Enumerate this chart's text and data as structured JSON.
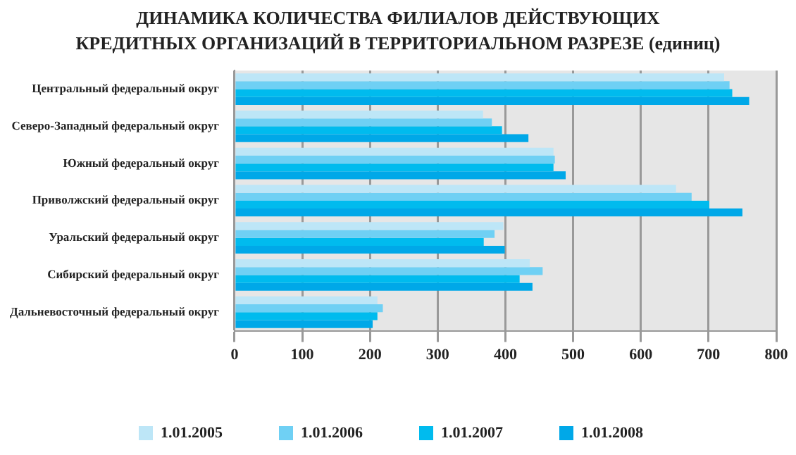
{
  "chart_data": {
    "type": "bar",
    "orientation": "horizontal",
    "title": "ДИНАМИКА КОЛИЧЕСТВА ФИЛИАЛОВ ДЕЙСТВУЮЩИХ КРЕДИТНЫХ ОРГАНИЗАЦИЙ В ТЕРРИТОРИАЛЬНОМ РАЗРЕЗЕ (единиц)",
    "categories": [
      "Центральный федеральный округ",
      "Северо-Западный федеральный округ",
      "Южный федеральный округ",
      "Приволжский федеральный округ",
      "Уральский федеральный округ",
      "Сибирский федеральный округ",
      "Дальневосточный федеральный округ"
    ],
    "series": [
      {
        "name": "1.01.2005",
        "color": "#bde6f7",
        "values": [
          723,
          367,
          471,
          652,
          397,
          436,
          211
        ]
      },
      {
        "name": "1.01.2006",
        "color": "#6fd0f4",
        "values": [
          731,
          380,
          473,
          675,
          384,
          455,
          219
        ]
      },
      {
        "name": "1.01.2007",
        "color": "#00bbee",
        "values": [
          735,
          395,
          471,
          701,
          368,
          421,
          211
        ]
      },
      {
        "name": "1.01.2008",
        "color": "#00a8e8",
        "values": [
          760,
          434,
          489,
          750,
          399,
          440,
          204
        ]
      }
    ],
    "xlim": [
      0,
      800
    ],
    "xticks": [
      0,
      100,
      200,
      300,
      400,
      500,
      600,
      700,
      800
    ],
    "grid": "x",
    "legend": "bottom"
  }
}
